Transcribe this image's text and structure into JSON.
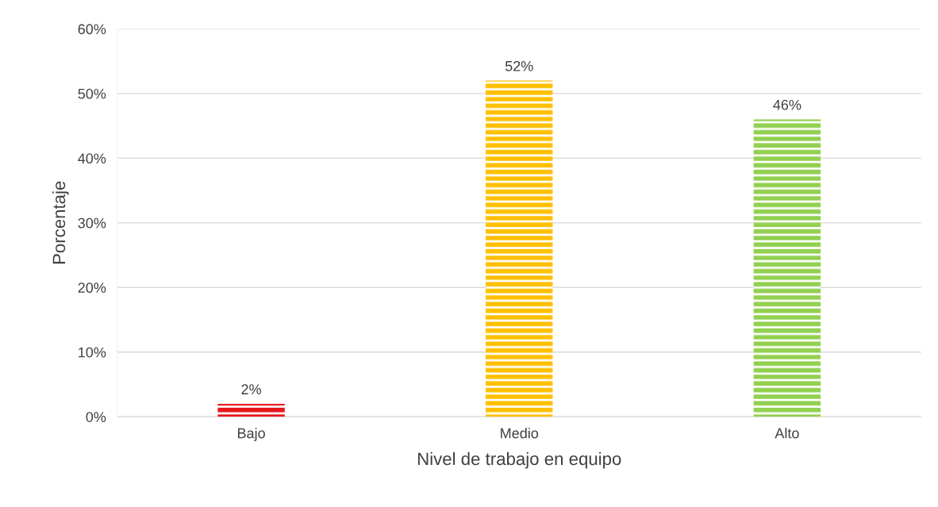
{
  "chart_data": {
    "type": "bar",
    "xlabel": "Nivel de trabajo en equipo",
    "ylabel": "Porcentaje",
    "categories": [
      "Bajo",
      "Medio",
      "Alto"
    ],
    "values": [
      2,
      52,
      46
    ],
    "colors": [
      "#e8141c",
      "#ffc000",
      "#92d050"
    ],
    "value_labels": [
      "2%",
      "52%",
      "46%"
    ],
    "ylim": [
      0,
      60
    ],
    "yticks": [
      {
        "value": 0,
        "label": "0%"
      },
      {
        "value": 10,
        "label": "10%"
      },
      {
        "value": 20,
        "label": "20%"
      },
      {
        "value": 30,
        "label": "30%"
      },
      {
        "value": 40,
        "label": "40%"
      },
      {
        "value": 50,
        "label": "50%"
      },
      {
        "value": 60,
        "label": "60%"
      }
    ],
    "grid": "y"
  }
}
